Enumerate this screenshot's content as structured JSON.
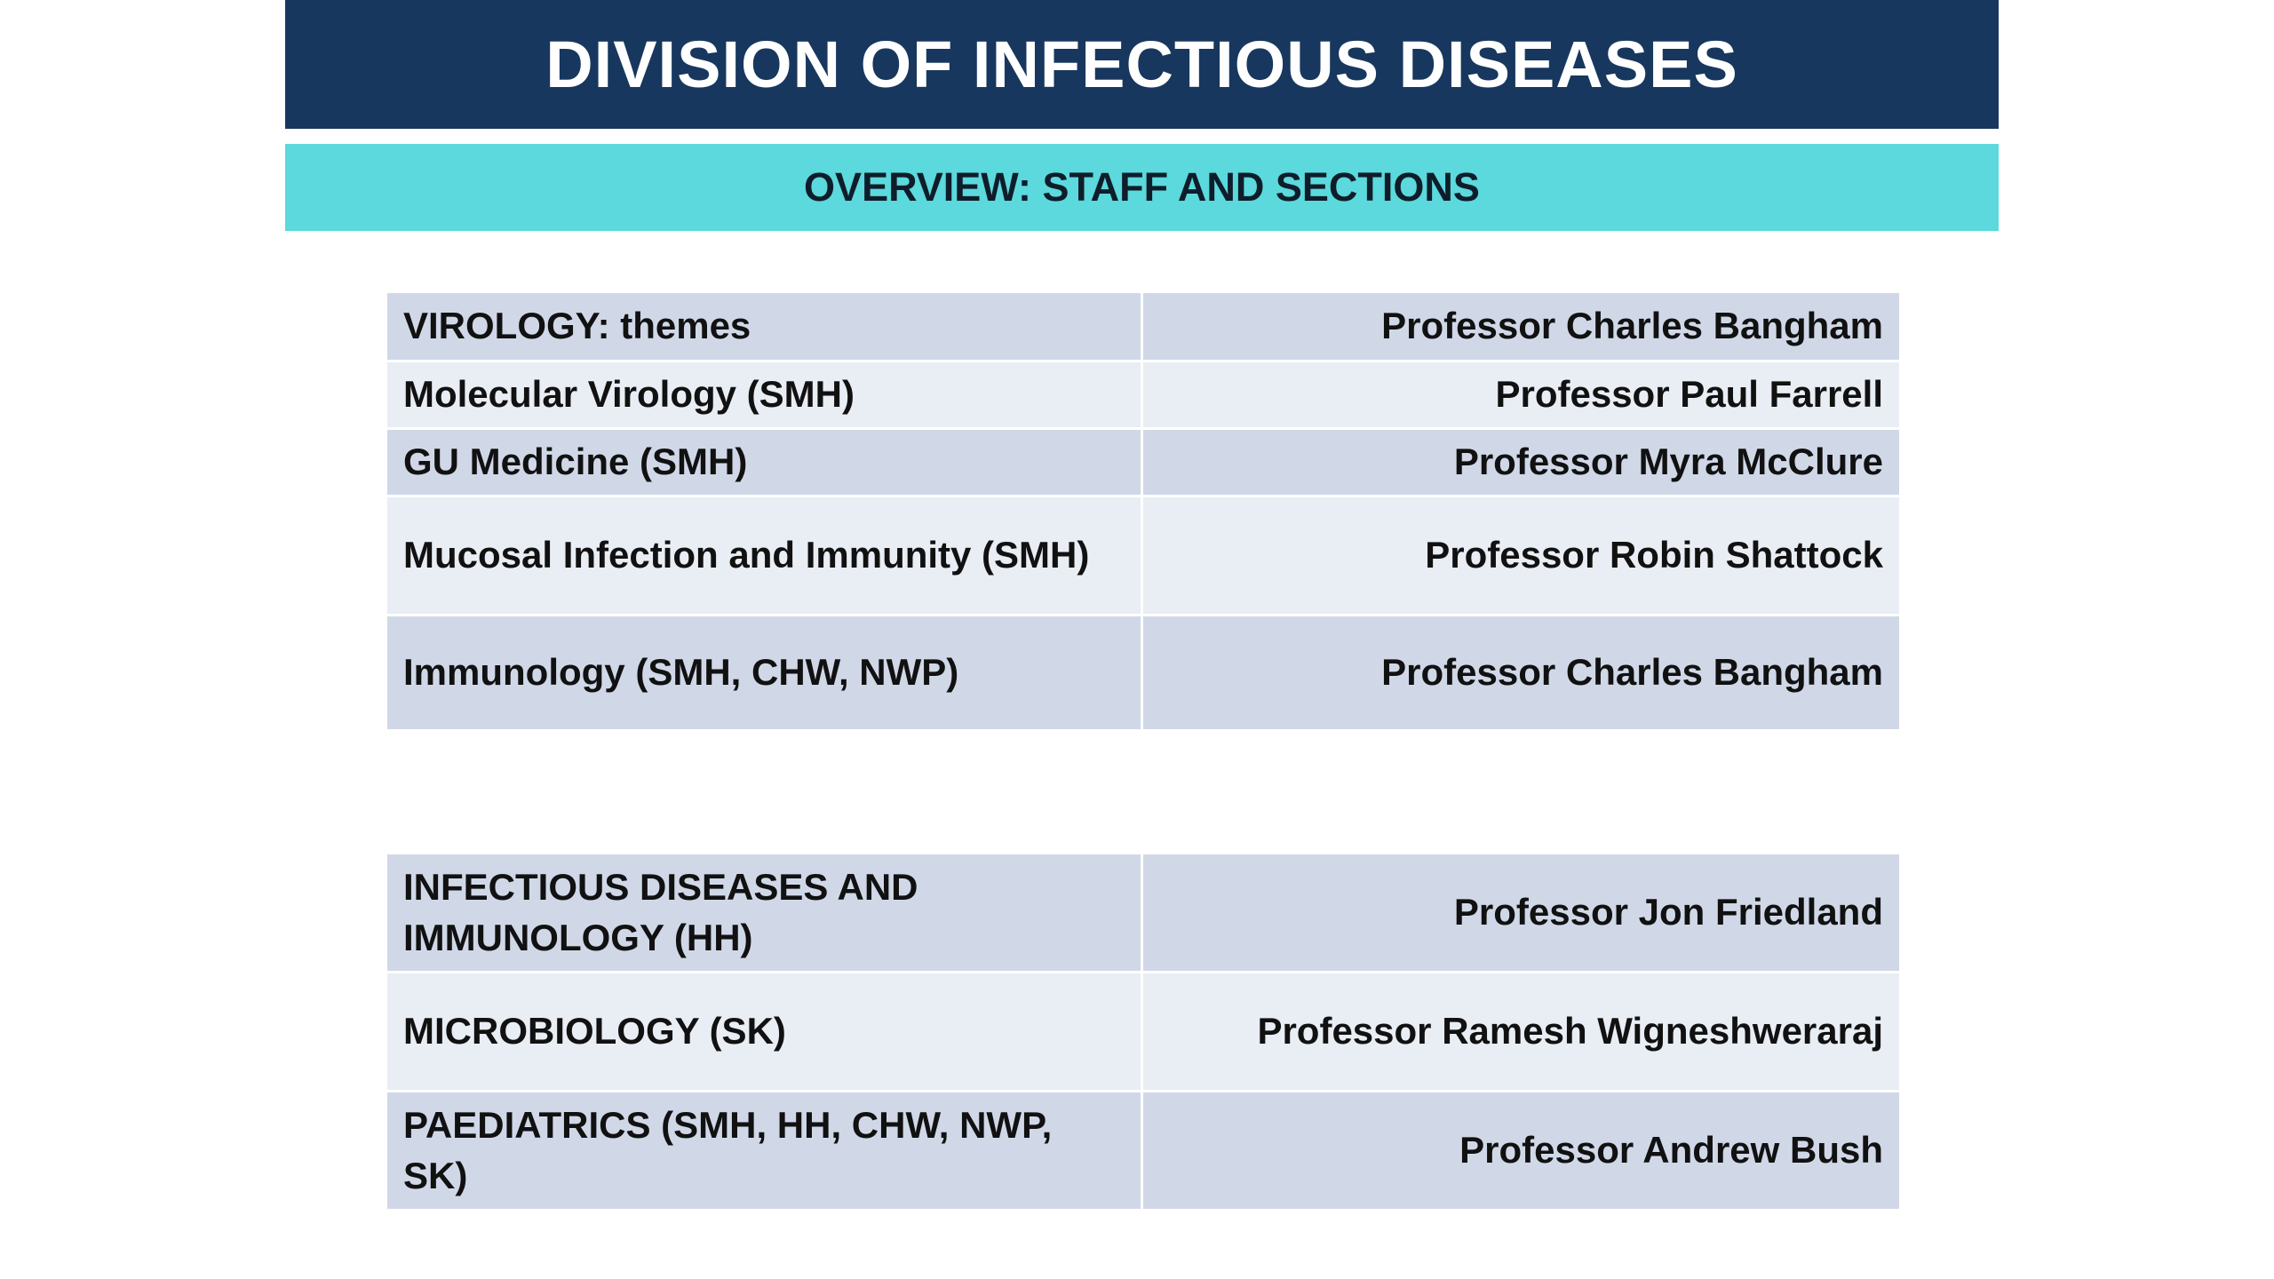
{
  "slide": {
    "title": "DIVISION OF INFECTIOUS DISEASES",
    "subtitle": "OVERVIEW: STAFF AND SECTIONS"
  },
  "table_1": {
    "rows": [
      {
        "section": "VIROLOGY: themes",
        "head": "Professor Charles Bangham"
      },
      {
        "section": "Molecular Virology (SMH)",
        "head": "Professor Paul Farrell"
      },
      {
        "section": "GU Medicine (SMH)",
        "head": "Professor Myra McClure"
      },
      {
        "section": "Mucosal Infection and Immunity (SMH)",
        "head": "Professor Robin Shattock"
      },
      {
        "section": "Immunology (SMH, CHW, NWP)",
        "head": "Professor Charles Bangham"
      }
    ]
  },
  "table_2": {
    "rows": [
      {
        "section": "INFECTIOUS DISEASES AND IMMUNOLOGY (HH)",
        "head": "Professor Jon Friedland"
      },
      {
        "section": "MICROBIOLOGY (SK)",
        "head": "Professor Ramesh Wigneshweraraj"
      },
      {
        "section": "PAEDIATRICS (SMH, HH, CHW, NWP, SK)",
        "head": "Professor Andrew Bush"
      }
    ]
  },
  "colors": {
    "title_bar": "#17375e",
    "subtitle_bar": "#5bd9dc",
    "row_dark": "#d0d8e8",
    "row_light": "#e9edf4"
  }
}
